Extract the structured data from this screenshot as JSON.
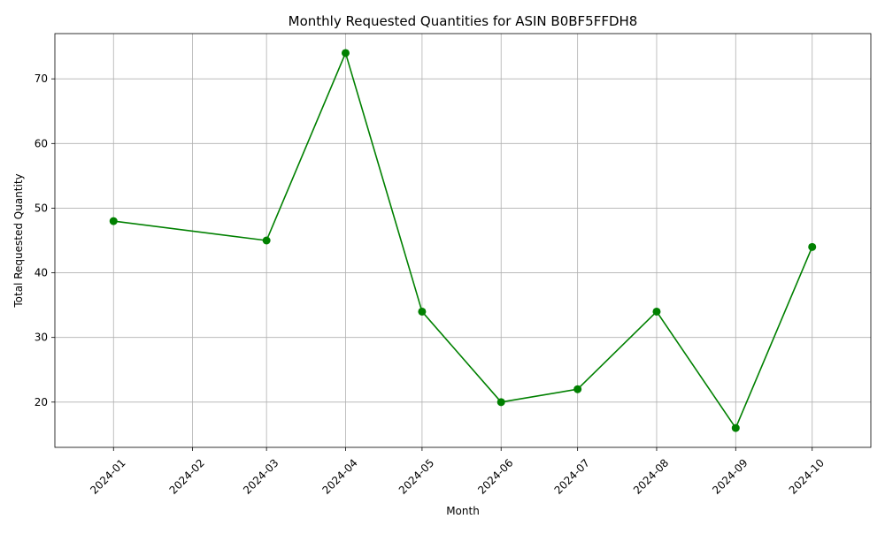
{
  "chart_data": {
    "type": "line",
    "title": "Monthly Requested Quantities for ASIN B0BF5FFDH8",
    "xlabel": "Month",
    "ylabel": "Total Requested Quantity",
    "x": [
      "2024-01-01",
      "2024-03-01",
      "2024-04-01",
      "2024-05-01",
      "2024-06-01",
      "2024-07-01",
      "2024-08-01",
      "2024-09-01",
      "2024-10-01"
    ],
    "values": [
      48,
      45,
      74,
      34,
      20,
      22,
      34,
      16,
      44
    ],
    "x_ticks": [
      "2024-01",
      "2024-02",
      "2024-03",
      "2024-04",
      "2024-05",
      "2024-06",
      "2024-07",
      "2024-08",
      "2024-09",
      "2024-10"
    ],
    "y_ticks": [
      20,
      30,
      40,
      50,
      60,
      70
    ],
    "ylim": [
      13,
      77
    ],
    "xlim": [
      "2023-12-09",
      "2024-10-24"
    ],
    "grid": true,
    "color": "#008000",
    "marker": "circle"
  }
}
